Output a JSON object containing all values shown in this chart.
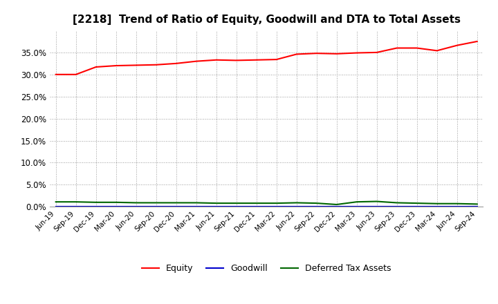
{
  "title": "[2218]  Trend of Ratio of Equity, Goodwill and DTA to Total Assets",
  "x_labels": [
    "Jun-19",
    "Sep-19",
    "Dec-19",
    "Mar-20",
    "Jun-20",
    "Sep-20",
    "Dec-20",
    "Mar-21",
    "Jun-21",
    "Sep-21",
    "Dec-21",
    "Mar-22",
    "Jun-22",
    "Sep-22",
    "Dec-22",
    "Mar-23",
    "Jun-23",
    "Sep-23",
    "Dec-23",
    "Mar-24",
    "Jun-24",
    "Sep-24"
  ],
  "equity": [
    0.3,
    0.3,
    0.317,
    0.32,
    0.321,
    0.322,
    0.325,
    0.33,
    0.333,
    0.332,
    0.333,
    0.334,
    0.346,
    0.348,
    0.347,
    0.349,
    0.35,
    0.36,
    0.36,
    0.354,
    0.366,
    0.375
  ],
  "goodwill": [
    0.0,
    0.0,
    0.0,
    0.0,
    0.0,
    0.0,
    0.0,
    0.0,
    0.0,
    0.0,
    0.0,
    0.0,
    0.0,
    0.0,
    0.0,
    0.0,
    0.0,
    0.0,
    0.0,
    0.0,
    0.0,
    0.0
  ],
  "dta": [
    0.011,
    0.011,
    0.01,
    0.01,
    0.009,
    0.009,
    0.009,
    0.009,
    0.008,
    0.008,
    0.008,
    0.008,
    0.009,
    0.008,
    0.005,
    0.011,
    0.012,
    0.009,
    0.008,
    0.007,
    0.007,
    0.006
  ],
  "equity_color": "#ff0000",
  "goodwill_color": "#0000cc",
  "dta_color": "#006600",
  "ylim": [
    0.0,
    0.4
  ],
  "yticks": [
    0.0,
    0.05,
    0.1,
    0.15,
    0.2,
    0.25,
    0.3,
    0.35
  ],
  "background_color": "#ffffff",
  "grid_color": "#999999",
  "title_fontsize": 11,
  "legend_labels": [
    "Equity",
    "Goodwill",
    "Deferred Tax Assets"
  ],
  "line_width": 1.5
}
